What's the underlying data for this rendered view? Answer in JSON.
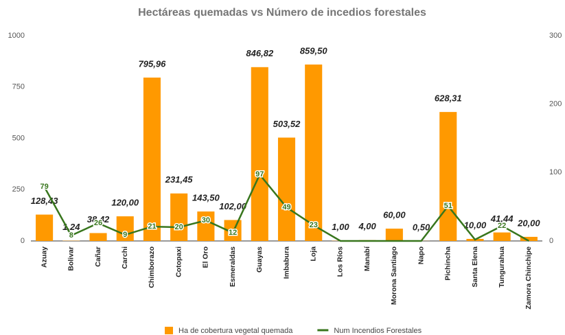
{
  "chart_data": {
    "type": "bar_line",
    "title": "Hectáreas quemadas vs Número de incedios forestales",
    "categories": [
      "Azuay",
      "Bolivar",
      "Cañar",
      "Carchi",
      "Chimborazo",
      "Cotopaxi",
      "El Oro",
      "Esmeraldas",
      "Guayas",
      "Imbabura",
      "Loja",
      "Los Ríos",
      "Manabí",
      "Morona Santiago",
      "Napo",
      "Pichincha",
      "Santa Elena",
      "Tungurahua",
      "Zamora Chinchipe"
    ],
    "series": [
      {
        "name": "Ha de cobertura vegetal quemada",
        "color": "#ff9900",
        "type": "bar",
        "values": [
          128.43,
          1.24,
          38.42,
          120.0,
          795.96,
          231.45,
          143.5,
          102.0,
          846.82,
          503.52,
          859.5,
          1.0,
          4.0,
          60.0,
          0.5,
          628.31,
          10.0,
          41.44,
          20.0
        ],
        "value_labels": [
          "128,43",
          "1,24",
          "38,42",
          "120,00",
          "795,96",
          "231,45",
          "143,50",
          "102,00",
          "846,82",
          "503,52",
          "859,50",
          "1,00",
          "4,00",
          "60,00",
          "0,50",
          "628,31",
          "10,00",
          "41,44",
          "20,00"
        ]
      },
      {
        "name": "Num Incendios Forestales",
        "color": "#38761d",
        "type": "line",
        "axis": "y2",
        "values": [
          79,
          8,
          26,
          9,
          21,
          20,
          30,
          12,
          97,
          49,
          23,
          0,
          0,
          0,
          0,
          51,
          2,
          22,
          0
        ],
        "value_labels": [
          "79",
          "8",
          "26",
          "9",
          "21",
          "20",
          "30",
          "12",
          "97",
          "49",
          "23",
          null,
          null,
          null,
          null,
          "51",
          null,
          "22",
          null
        ]
      }
    ],
    "ylim": [
      0,
      1000
    ],
    "yticks": [
      0,
      250,
      500,
      750,
      1000
    ],
    "y2lim": [
      0,
      300
    ],
    "y2ticks": [
      0,
      100,
      200,
      300
    ],
    "grid": false,
    "legend": "bottom"
  }
}
